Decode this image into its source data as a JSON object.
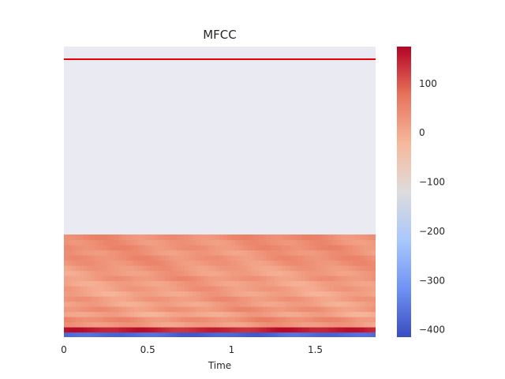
{
  "chart_data": {
    "type": "heatmap",
    "title": "MFCC",
    "xlabel": "Time",
    "ylabel": "",
    "x_ticks": [
      "0",
      "0.5",
      "1",
      "1.5"
    ],
    "x_tick_values": [
      0,
      0.5,
      1,
      1.5
    ],
    "xlim": [
      0,
      1.86
    ],
    "n_frames": 80,
    "n_mfcc": 20,
    "empty_region_color": "#eaeaf2",
    "red_line": {
      "color": "#e8000b",
      "position": "top edge"
    },
    "colormap": "coolwarm",
    "colorbar": {
      "ticks": [
        "100",
        "0",
        "−100",
        "−200",
        "−300",
        "−400"
      ],
      "tick_values": [
        100,
        0,
        -100,
        -200,
        -300,
        -400
      ],
      "range": [
        -415,
        175
      ],
      "stops": [
        "#3b4cc0",
        "#6f92f3",
        "#aac7fd",
        "#dddcdc",
        "#f7b89c",
        "#e7745b",
        "#b40426"
      ]
    },
    "coefficients": [
      {
        "index": 0,
        "mean": -380
      },
      {
        "index": 1,
        "mean": 150
      },
      {
        "index": 2,
        "mean": 20
      },
      {
        "index": 3,
        "mean": 40
      },
      {
        "index": 4,
        "mean": 5
      },
      {
        "index": 5,
        "mean": 30
      },
      {
        "index": 6,
        "mean": 10
      },
      {
        "index": 7,
        "mean": 25
      },
      {
        "index": 8,
        "mean": 8
      },
      {
        "index": 9,
        "mean": 20
      },
      {
        "index": 10,
        "mean": 12
      },
      {
        "index": 11,
        "mean": 28
      },
      {
        "index": 12,
        "mean": 15
      },
      {
        "index": 13,
        "mean": 22
      },
      {
        "index": 14,
        "mean": 30
      },
      {
        "index": 15,
        "mean": 35
      },
      {
        "index": 16,
        "mean": 25
      },
      {
        "index": 17,
        "mean": 38
      },
      {
        "index": 18,
        "mean": 32
      },
      {
        "index": 19,
        "mean": 40
      }
    ]
  }
}
